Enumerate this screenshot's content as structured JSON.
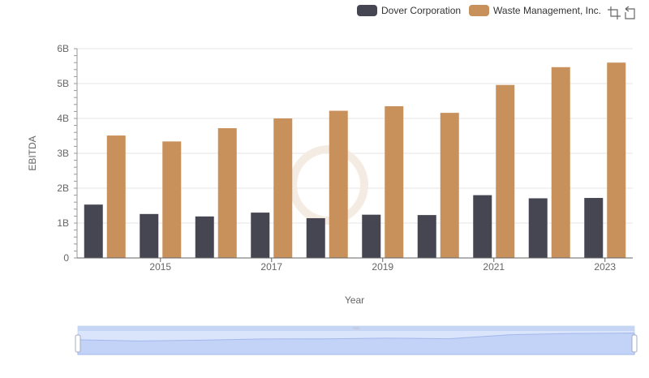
{
  "legend": [
    {
      "name": "Dover Corporation",
      "color": "#464652"
    },
    {
      "name": "Waste Management, Inc.",
      "color": "#c8915c"
    }
  ],
  "toolbox": {
    "zoom_icon": "zoom-icon",
    "restore_icon": "restore-icon"
  },
  "chart_data": {
    "type": "bar",
    "title": "",
    "xlabel": "Year",
    "ylabel": "EBITDA",
    "categories": [
      "2014",
      "2015",
      "2016",
      "2017",
      "2018",
      "2019",
      "2020",
      "2021",
      "2022",
      "2023"
    ],
    "x_tick_labels": [
      "2015",
      "2017",
      "2019",
      "2021",
      "2023"
    ],
    "y_tick_labels": [
      "0",
      "1B",
      "2B",
      "3B",
      "4B",
      "5B",
      "6B"
    ],
    "ylim": [
      0,
      6000000000
    ],
    "grid": true,
    "legend_position": "top-right",
    "series": [
      {
        "name": "Dover Corporation",
        "color": "#464652",
        "values": [
          1530000000,
          1260000000,
          1190000000,
          1300000000,
          1140000000,
          1240000000,
          1230000000,
          1800000000,
          1710000000,
          1720000000
        ]
      },
      {
        "name": "Waste Management, Inc.",
        "color": "#c8915c",
        "values": [
          3510000000,
          3340000000,
          3720000000,
          4000000000,
          4220000000,
          4350000000,
          4160000000,
          4960000000,
          5470000000,
          5600000000
        ]
      }
    ],
    "data_zoom": {
      "start": 0,
      "end": 100
    }
  }
}
